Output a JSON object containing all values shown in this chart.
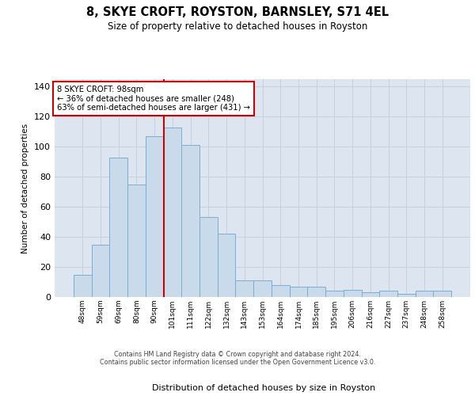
{
  "title": "8, SKYE CROFT, ROYSTON, BARNSLEY, S71 4EL",
  "subtitle": "Size of property relative to detached houses in Royston",
  "xlabel": "Distribution of detached houses by size in Royston",
  "ylabel": "Number of detached properties",
  "categories": [
    "48sqm",
    "59sqm",
    "69sqm",
    "80sqm",
    "90sqm",
    "101sqm",
    "111sqm",
    "122sqm",
    "132sqm",
    "143sqm",
    "153sqm",
    "164sqm",
    "174sqm",
    "185sqm",
    "195sqm",
    "206sqm",
    "216sqm",
    "227sqm",
    "237sqm",
    "248sqm",
    "258sqm"
  ],
  "values": [
    15,
    35,
    93,
    75,
    107,
    113,
    101,
    53,
    42,
    11,
    11,
    8,
    7,
    7,
    4,
    5,
    3,
    4,
    2,
    4,
    4
  ],
  "bar_color": "#c9daea",
  "bar_edge_color": "#7aaed0",
  "grid_color": "#c8d0dc",
  "background_color": "#dde6f0",
  "vline_color": "#cc0000",
  "vline_index": 4.5,
  "annotation_line1": "8 SKYE CROFT: 98sqm",
  "annotation_line2": "← 36% of detached houses are smaller (248)",
  "annotation_line3": "63% of semi-detached houses are larger (431) →",
  "annotation_box_color": "#ffffff",
  "annotation_box_edge": "#cc0000",
  "ylim": [
    0,
    145
  ],
  "yticks": [
    0,
    20,
    40,
    60,
    80,
    100,
    120,
    140
  ],
  "footer_line1": "Contains HM Land Registry data © Crown copyright and database right 2024.",
  "footer_line2": "Contains public sector information licensed under the Open Government Licence v3.0."
}
